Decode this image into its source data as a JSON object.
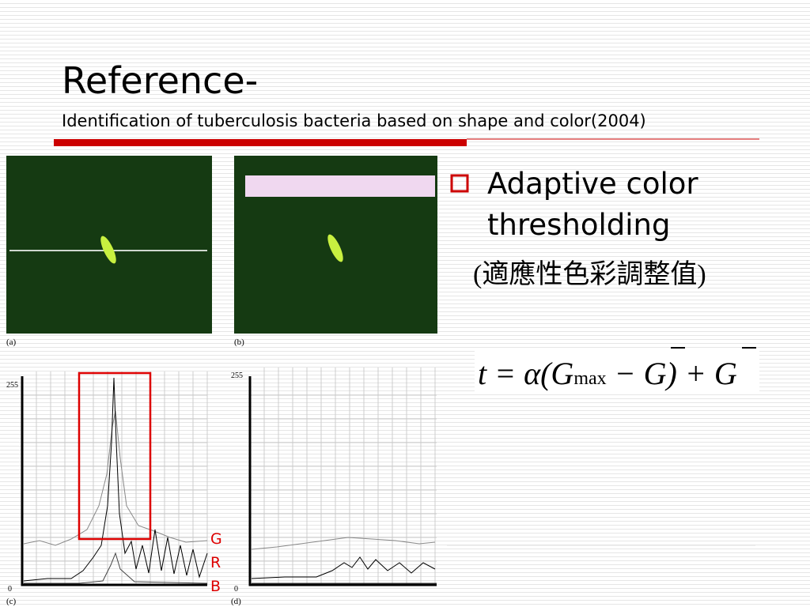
{
  "header": {
    "title": "Reference-",
    "subtitle": "Identification of tuberculosis bacteria based on shape and color(2004)"
  },
  "figures": {
    "a": "(a)",
    "b": "(b)",
    "c": "(c)",
    "d": "(d)",
    "c_top": "255",
    "c_bottom": "0",
    "d_top": "255",
    "d_bottom": "0",
    "legend": [
      "G",
      "R",
      "B"
    ]
  },
  "bullet": {
    "lines": [
      "Adaptive color",
      "thresholding"
    ],
    "note": "(適應性色彩調整值)"
  },
  "formula": {
    "lhs": "t = α(G",
    "sub": "max",
    "mid": "− G",
    "rest": ") + G"
  }
}
